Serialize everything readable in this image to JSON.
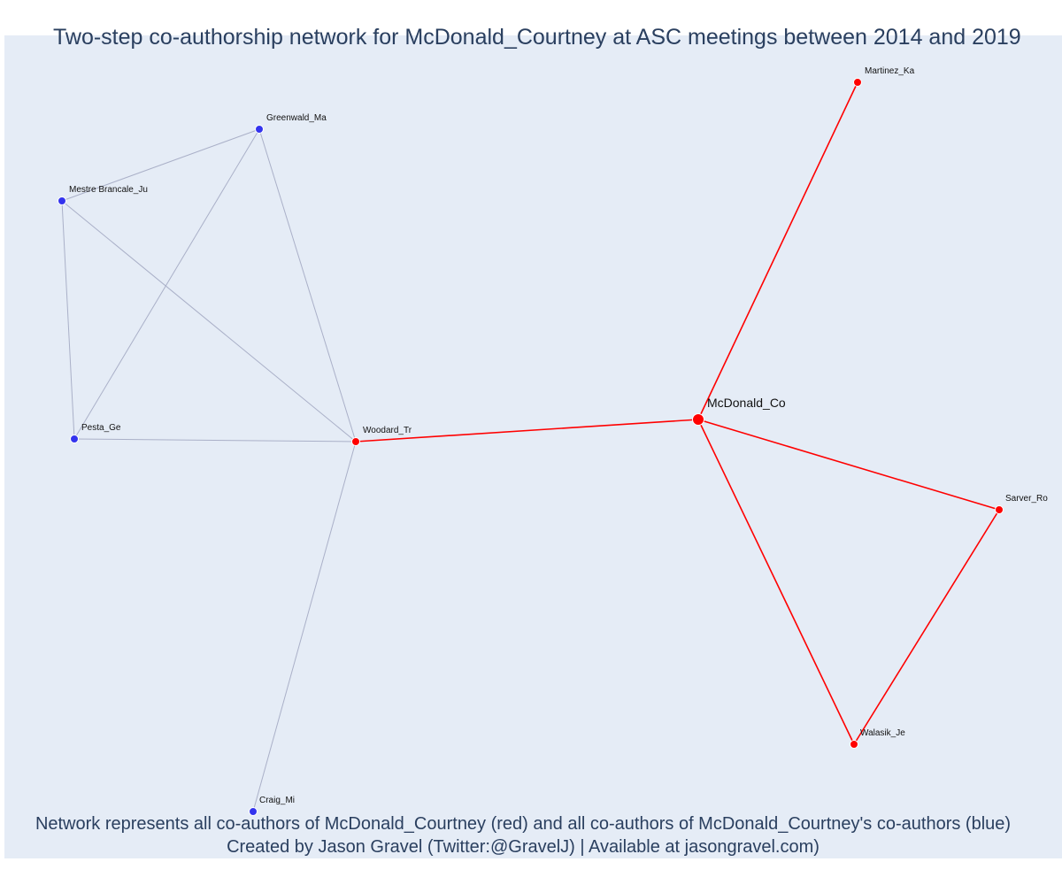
{
  "title": "Two-step co-authorship network for McDonald_Courtney at ASC meetings between 2014 and 2019",
  "caption": {
    "line1": "Network represents all co-authors of McDonald_Courtney (red) and all co-authors of McDonald_Courtney's co-authors (blue)",
    "line2": "Created by Jason Gravel (Twitter:@GravelJ) | Available at jasongravel.com)"
  },
  "colors": {
    "plot_background": "#e5ecf6",
    "first_degree": "#ff0000",
    "second_degree": "#3333ee",
    "second_degree_edge": "#aab0c8",
    "text": "#2a3f5f"
  },
  "chart_data": {
    "type": "network",
    "focal": "McDonald_Co",
    "nodes": [
      {
        "id": "McDonald_Co",
        "group": "focal"
      },
      {
        "id": "Martinez_Ka",
        "group": "first_degree"
      },
      {
        "id": "Woodard_Tr",
        "group": "first_degree"
      },
      {
        "id": "Sarver_Ro",
        "group": "first_degree"
      },
      {
        "id": "Walasik_Je",
        "group": "first_degree"
      },
      {
        "id": "Greenwald_Ma",
        "group": "second_degree"
      },
      {
        "id": "Mestre Brancale_Ju",
        "group": "second_degree"
      },
      {
        "id": "Pesta_Ge",
        "group": "second_degree"
      },
      {
        "id": "Craig_Mi",
        "group": "second_degree"
      }
    ],
    "edges": [
      {
        "source": "McDonald_Co",
        "target": "Martinez_Ka",
        "type": "first_degree"
      },
      {
        "source": "McDonald_Co",
        "target": "Woodard_Tr",
        "type": "first_degree"
      },
      {
        "source": "McDonald_Co",
        "target": "Sarver_Ro",
        "type": "first_degree"
      },
      {
        "source": "McDonald_Co",
        "target": "Walasik_Je",
        "type": "first_degree"
      },
      {
        "source": "Sarver_Ro",
        "target": "Walasik_Je",
        "type": "first_degree"
      },
      {
        "source": "Greenwald_Ma",
        "target": "Mestre Brancale_Ju",
        "type": "second_degree"
      },
      {
        "source": "Greenwald_Ma",
        "target": "Pesta_Ge",
        "type": "second_degree"
      },
      {
        "source": "Greenwald_Ma",
        "target": "Woodard_Tr",
        "type": "second_degree"
      },
      {
        "source": "Mestre Brancale_Ju",
        "target": "Pesta_Ge",
        "type": "second_degree"
      },
      {
        "source": "Mestre Brancale_Ju",
        "target": "Woodard_Tr",
        "type": "second_degree"
      },
      {
        "source": "Pesta_Ge",
        "target": "Woodard_Tr",
        "type": "second_degree"
      },
      {
        "source": "Woodard_Tr",
        "target": "Craig_Mi",
        "type": "second_degree"
      }
    ]
  }
}
